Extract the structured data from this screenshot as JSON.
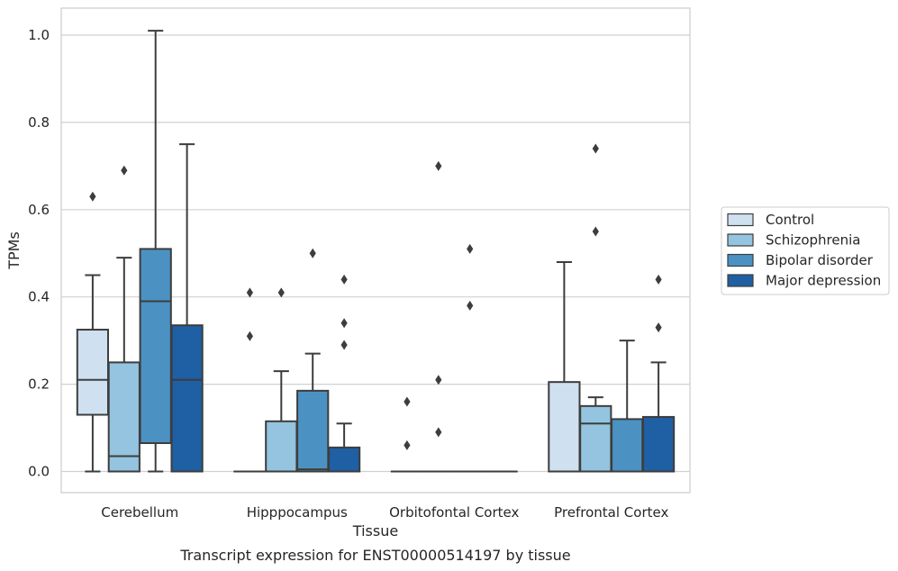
{
  "caption": "Transcript expression for ENST00000514197 by tissue",
  "chart_data": {
    "type": "box",
    "xlabel": "Tissue",
    "ylabel": "TPMs",
    "ylim": [
      -0.05,
      1.06
    ],
    "yticks": [
      0.0,
      0.2,
      0.4,
      0.6,
      0.8,
      1.0
    ],
    "ytick_labels": [
      "0.0",
      "0.2",
      "0.4",
      "0.6",
      "0.8",
      "1.0"
    ],
    "categories": [
      "Cerebellum",
      "Hipppocampus",
      "Orbitofontal Cortex",
      "Prefrontal Cortex"
    ],
    "grid": "horizontal",
    "legend_position": "right",
    "series": [
      {
        "name": "Control",
        "color": "#cfe0f0",
        "boxes": [
          {
            "min": 0.0,
            "q1": 0.13,
            "median": 0.21,
            "q3": 0.325,
            "max": 0.45,
            "outliers": [
              0.63
            ]
          },
          {
            "min": 0.0,
            "q1": 0.0,
            "median": 0.0,
            "q3": 0.0,
            "max": 0.0,
            "outliers": [
              0.31,
              0.41
            ]
          },
          {
            "min": 0.0,
            "q1": 0.0,
            "median": 0.0,
            "q3": 0.0,
            "max": 0.0,
            "outliers": [
              0.06,
              0.16
            ]
          },
          {
            "min": 0.0,
            "q1": 0.0,
            "median": 0.0,
            "q3": 0.205,
            "max": 0.48,
            "outliers": []
          }
        ]
      },
      {
        "name": "Schizophrenia",
        "color": "#94c4df",
        "boxes": [
          {
            "min": 0.0,
            "q1": 0.0,
            "median": 0.035,
            "q3": 0.25,
            "max": 0.49,
            "outliers": [
              0.69
            ]
          },
          {
            "min": 0.0,
            "q1": 0.0,
            "median": 0.0,
            "q3": 0.115,
            "max": 0.23,
            "outliers": [
              0.41
            ]
          },
          {
            "min": 0.0,
            "q1": 0.0,
            "median": 0.0,
            "q3": 0.0,
            "max": 0.0,
            "outliers": [
              0.09,
              0.21,
              0.7
            ]
          },
          {
            "min": 0.0,
            "q1": 0.0,
            "median": 0.11,
            "q3": 0.15,
            "max": 0.17,
            "outliers": [
              0.55,
              0.74
            ]
          }
        ]
      },
      {
        "name": "Bipolar disorder",
        "color": "#4b92c3",
        "boxes": [
          {
            "min": 0.0,
            "q1": 0.065,
            "median": 0.39,
            "q3": 0.51,
            "max": 1.01,
            "outliers": []
          },
          {
            "min": 0.0,
            "q1": 0.0,
            "median": 0.005,
            "q3": 0.185,
            "max": 0.27,
            "outliers": [
              0.5
            ]
          },
          {
            "min": 0.0,
            "q1": 0.0,
            "median": 0.0,
            "q3": 0.0,
            "max": 0.0,
            "outliers": [
              0.38,
              0.51
            ]
          },
          {
            "min": 0.0,
            "q1": 0.0,
            "median": 0.0,
            "q3": 0.12,
            "max": 0.3,
            "outliers": []
          }
        ]
      },
      {
        "name": "Major depression",
        "color": "#1f5fa3",
        "boxes": [
          {
            "min": 0.0,
            "q1": 0.0,
            "median": 0.21,
            "q3": 0.335,
            "max": 0.75,
            "outliers": []
          },
          {
            "min": 0.0,
            "q1": 0.0,
            "median": 0.0,
            "q3": 0.055,
            "max": 0.11,
            "outliers": [
              0.29,
              0.34,
              0.44
            ]
          },
          {
            "min": 0.0,
            "q1": 0.0,
            "median": 0.0,
            "q3": 0.0,
            "max": 0.0,
            "outliers": []
          },
          {
            "min": 0.0,
            "q1": 0.0,
            "median": 0.0,
            "q3": 0.125,
            "max": 0.25,
            "outliers": [
              0.33,
              0.44
            ]
          }
        ]
      }
    ]
  }
}
